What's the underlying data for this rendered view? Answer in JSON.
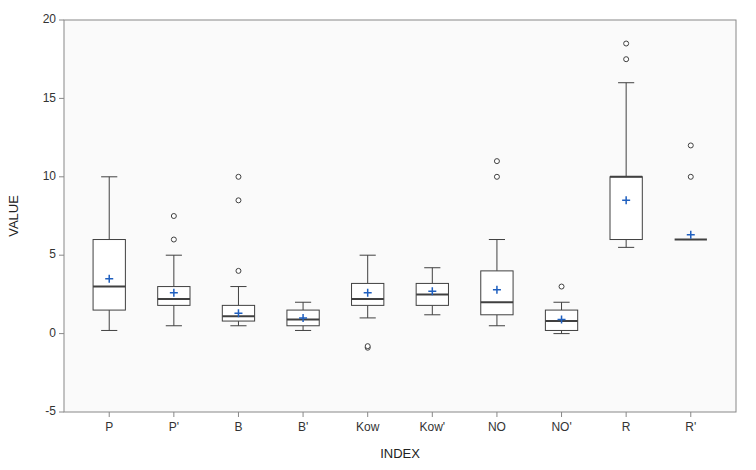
{
  "chart_data": {
    "type": "box",
    "categories": [
      "P",
      "P'",
      "B",
      "B'",
      "Kow",
      "Kow'",
      "NO",
      "NO'",
      "R",
      "R'"
    ],
    "boxes": [
      {
        "q1": 1.5,
        "median": 3.0,
        "q3": 6.0,
        "whislo": 0.2,
        "whishi": 10.0,
        "mean": 3.5,
        "fliers": []
      },
      {
        "q1": 1.8,
        "median": 2.2,
        "q3": 3.0,
        "whislo": 0.5,
        "whishi": 5.0,
        "mean": 2.6,
        "fliers": [
          6.0,
          7.5
        ]
      },
      {
        "q1": 0.8,
        "median": 1.1,
        "q3": 1.8,
        "whislo": 0.5,
        "whishi": 3.0,
        "mean": 1.3,
        "fliers": [
          4.0,
          8.5,
          10.0
        ]
      },
      {
        "q1": 0.5,
        "median": 0.9,
        "q3": 1.5,
        "whislo": 0.2,
        "whishi": 2.0,
        "mean": 1.0,
        "fliers": []
      },
      {
        "q1": 1.8,
        "median": 2.2,
        "q3": 3.2,
        "whislo": 1.0,
        "whishi": 5.0,
        "mean": 2.6,
        "fliers": [
          -0.9,
          -0.8
        ]
      },
      {
        "q1": 1.8,
        "median": 2.5,
        "q3": 3.2,
        "whislo": 1.2,
        "whishi": 4.2,
        "mean": 2.7,
        "fliers": []
      },
      {
        "q1": 1.2,
        "median": 2.0,
        "q3": 4.0,
        "whislo": 0.5,
        "whishi": 6.0,
        "mean": 2.8,
        "fliers": [
          10.0,
          11.0
        ]
      },
      {
        "q1": 0.2,
        "median": 0.8,
        "q3": 1.5,
        "whislo": 0.0,
        "whishi": 2.0,
        "mean": 0.9,
        "fliers": [
          3.0
        ]
      },
      {
        "q1": 6.0,
        "median": 10.0,
        "q3": 10.0,
        "whislo": 5.5,
        "whishi": 16.0,
        "mean": 8.5,
        "fliers": [
          17.5,
          18.5
        ]
      },
      {
        "q1": 6.0,
        "median": 6.0,
        "q3": 6.0,
        "whislo": 6.0,
        "whishi": 6.0,
        "mean": 6.3,
        "fliers": [
          10.0,
          12.0
        ]
      }
    ],
    "ylim": [
      -5,
      20
    ],
    "yticks": [
      -5,
      0,
      5,
      10,
      15,
      20
    ],
    "ylabel": "VALUE",
    "xlabel": "INDEX",
    "color": "#404040",
    "grid": false
  }
}
